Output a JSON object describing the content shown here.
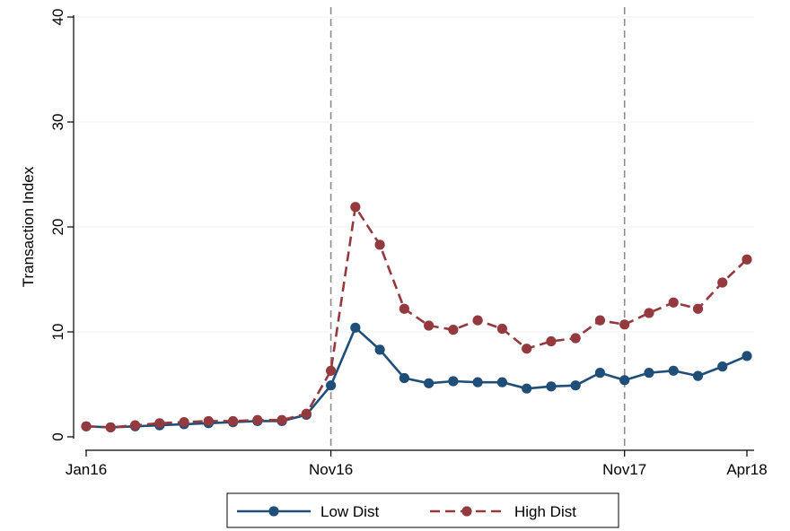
{
  "chart_data": {
    "type": "line",
    "title": "",
    "xlabel": "",
    "ylabel": "Transaction Index",
    "ylim": [
      0,
      40
    ],
    "yticks": [
      0,
      10,
      20,
      30,
      40
    ],
    "xlim": [
      0,
      27
    ],
    "xticks": [
      {
        "x": 0,
        "label": "Jan16"
      },
      {
        "x": 10,
        "label": "Nov16"
      },
      {
        "x": 22,
        "label": "Nov17"
      },
      {
        "x": 27,
        "label": "Apr18"
      }
    ],
    "reference_lines_x": [
      10,
      22
    ],
    "grid": true,
    "legend_position": "bottom",
    "x": [
      0,
      1,
      2,
      3,
      4,
      5,
      6,
      7,
      8,
      9,
      10,
      11,
      12,
      13,
      14,
      15,
      16,
      17,
      18,
      19,
      20,
      21,
      22,
      23,
      24,
      25,
      26,
      27
    ],
    "series": [
      {
        "name": "Low Dist",
        "color": "#1f4e79",
        "line_style": "solid",
        "marker": "circle",
        "values": [
          1.0,
          0.9,
          1.0,
          1.1,
          1.2,
          1.3,
          1.4,
          1.5,
          1.5,
          2.1,
          4.9,
          10.4,
          8.3,
          5.6,
          5.1,
          5.3,
          5.2,
          5.2,
          4.6,
          4.8,
          4.9,
          6.1,
          5.4,
          6.1,
          6.3,
          5.8,
          6.7,
          7.7
        ]
      },
      {
        "name": "High Dist",
        "color": "#943a3f",
        "line_style": "dashed",
        "marker": "circle",
        "values": [
          1.0,
          0.9,
          1.1,
          1.3,
          1.4,
          1.5,
          1.5,
          1.6,
          1.6,
          2.2,
          6.3,
          21.9,
          18.3,
          12.2,
          10.6,
          10.2,
          11.1,
          10.3,
          8.4,
          9.1,
          9.4,
          11.1,
          10.7,
          11.8,
          12.8,
          12.2,
          14.7,
          16.9
        ]
      }
    ]
  }
}
